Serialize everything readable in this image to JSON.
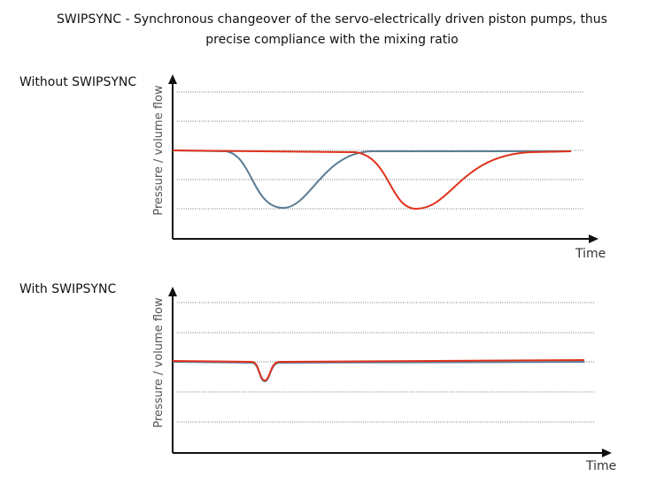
{
  "title_lines": [
    "SWIPSYNC - Synchronous changeover of the servo-electrically driven piston pumps, thus",
    "precise compliance with the mixing ratio"
  ],
  "panels": [
    {
      "label": "Without SWIPSYNC",
      "y_axis_label": "Pressure / volume flow",
      "x_axis_label": "Time"
    },
    {
      "label": "With SWIPSYNC",
      "y_axis_label": "Pressure / volume flow",
      "x_axis_label": "Time"
    }
  ]
}
